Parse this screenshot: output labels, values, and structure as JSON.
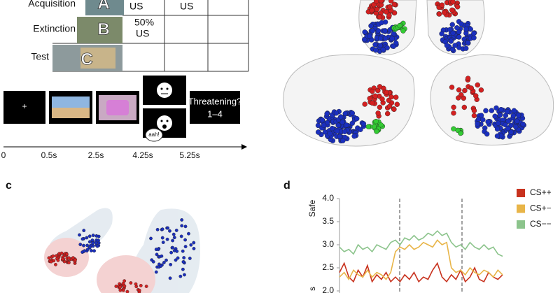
{
  "panel_a": {
    "rows": [
      "Acquisition",
      "Extinction",
      "Test"
    ],
    "contexts": [
      "A",
      "B",
      "C"
    ],
    "cells": {
      "acq_1": "US",
      "acq_2": "US",
      "ext_1": [
        "50%",
        "US"
      ]
    },
    "timeline": {
      "fixation": "+",
      "sound": "aah!",
      "question": [
        "Threatening?",
        "1–4"
      ],
      "ticks": [
        "0",
        "0.5s",
        "2.5s",
        "4.25s",
        "5.25s"
      ]
    }
  },
  "panel_labels": [
    "c",
    "d"
  ],
  "chart_data": {
    "type": "line",
    "y_labels": [
      "Safe",
      "s"
    ],
    "ylim": [
      2.0,
      4.0
    ],
    "yticks": [
      {
        "value": 2.0,
        "label": "2.0"
      },
      {
        "value": 2.5,
        "label": "2.5"
      },
      {
        "value": 3.0,
        "label": "3.0"
      },
      {
        "value": 3.5,
        "label": "3.5"
      },
      {
        "value": 4.0,
        "label": "4.0"
      }
    ],
    "legend": "right",
    "series": [
      {
        "name": "CS++",
        "color": "#c8321e",
        "values": [
          2.4,
          2.6,
          2.3,
          2.2,
          2.45,
          2.3,
          2.55,
          2.2,
          2.35,
          2.25,
          2.4,
          2.2,
          2.3,
          2.2,
          2.35,
          2.25,
          2.4,
          2.2,
          2.3,
          2.25,
          2.45,
          2.6,
          2.3,
          2.2,
          2.35,
          2.25,
          2.45,
          2.2,
          2.3,
          2.5,
          2.25,
          2.2,
          2.4,
          2.3,
          2.25,
          2.35
        ]
      },
      {
        "name": "CS+−",
        "color": "#e8b548",
        "values": [
          2.3,
          2.4,
          2.25,
          2.45,
          2.35,
          2.3,
          2.45,
          2.3,
          2.4,
          2.35,
          2.25,
          2.4,
          2.85,
          2.95,
          2.9,
          3.0,
          2.9,
          2.95,
          3.05,
          3.0,
          2.95,
          3.1,
          3.0,
          3.05,
          2.5,
          2.4,
          2.45,
          2.35,
          2.5,
          2.4,
          2.35,
          2.45,
          2.4,
          2.3,
          2.45,
          2.35
        ]
      },
      {
        "name": "CS−−",
        "color": "#8cc48c",
        "values": [
          2.95,
          2.85,
          2.9,
          2.8,
          3.0,
          2.9,
          2.95,
          2.85,
          3.0,
          2.95,
          2.9,
          3.05,
          3.1,
          3.0,
          3.15,
          3.1,
          3.2,
          3.1,
          3.15,
          3.25,
          3.2,
          3.3,
          3.2,
          3.25,
          3.05,
          2.95,
          3.0,
          2.9,
          3.05,
          2.95,
          2.9,
          3.0,
          2.9,
          2.95,
          2.8,
          2.75
        ]
      }
    ]
  }
}
